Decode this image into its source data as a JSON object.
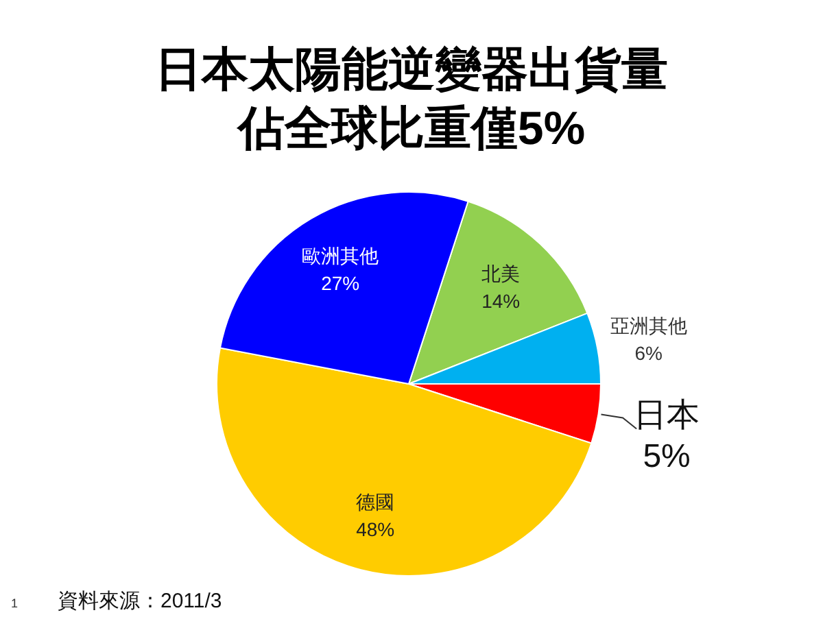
{
  "chart_data": {
    "type": "pie",
    "title": "日本太陽能逆變器出貨量",
    "subtitle": "佔全球比重僅5%",
    "categories": [
      "北美",
      "亞洲其他",
      "日本",
      "德國",
      "歐洲其他"
    ],
    "values": [
      14,
      6,
      5,
      48,
      27
    ],
    "colors": [
      "#92d050",
      "#00b0f0",
      "#ff0000",
      "#ffcc00",
      "#0000ff"
    ],
    "value_labels": [
      "14%",
      "6%",
      "5%",
      "48%",
      "27%"
    ],
    "annotations": [
      "資料來源：2011/3",
      "1"
    ]
  }
}
